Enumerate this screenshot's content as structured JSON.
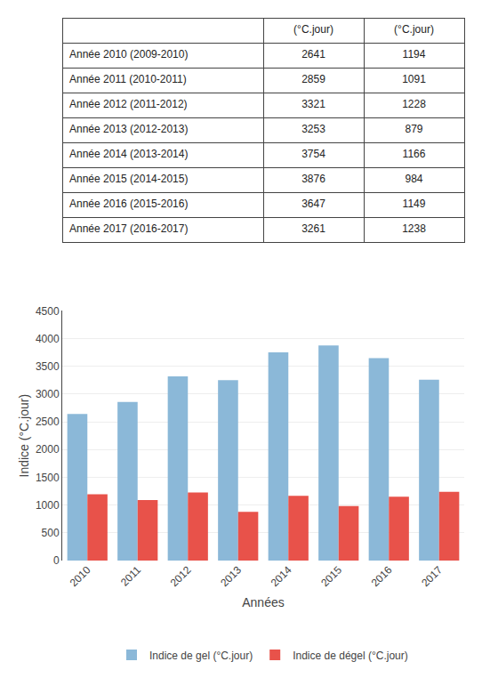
{
  "chart_data": [
    {
      "type": "table",
      "header": [
        null,
        "(°C.jour)",
        "(°C.jour)"
      ],
      "rows": [
        [
          "Année 2010 (2009-2010)",
          "2641",
          "1194"
        ],
        [
          "Année 2011 (2010-2011)",
          "2859",
          "1091"
        ],
        [
          "Année 2012 (2011-2012)",
          "3321",
          "1228"
        ],
        [
          "Année 2013 (2012-2013)",
          "3253",
          "879"
        ],
        [
          "Année 2014 (2013-2014)",
          "3754",
          "1166"
        ],
        [
          "Année 2015 (2014-2015)",
          "3876",
          "984"
        ],
        [
          "Année 2016 (2015-2016)",
          "3647",
          "1149"
        ],
        [
          "Année 2017 (2016-2017)",
          "3261",
          "1238"
        ]
      ]
    },
    {
      "type": "bar",
      "categories": [
        "2010",
        "2011",
        "2012",
        "2013",
        "2014",
        "2015",
        "2016",
        "2017"
      ],
      "series": [
        {
          "name": "Indice de gel (°C.jour)",
          "color": "#8BB8D8",
          "values": [
            2641,
            2859,
            3321,
            3253,
            3754,
            3876,
            3647,
            3261
          ]
        },
        {
          "name": "Indice de dégel (°C.jour)",
          "color": "#E8524A",
          "values": [
            1194,
            1091,
            1228,
            879,
            1166,
            984,
            1149,
            1238
          ]
        }
      ],
      "x_label": "Années",
      "y_label": "Indice (°C.jour)",
      "ylim": [
        0,
        4500
      ],
      "yticks": [
        0,
        500,
        1000,
        1500,
        2000,
        2500,
        3000,
        3500,
        4000,
        4500
      ],
      "grid": true,
      "legend": "bottom"
    }
  ]
}
